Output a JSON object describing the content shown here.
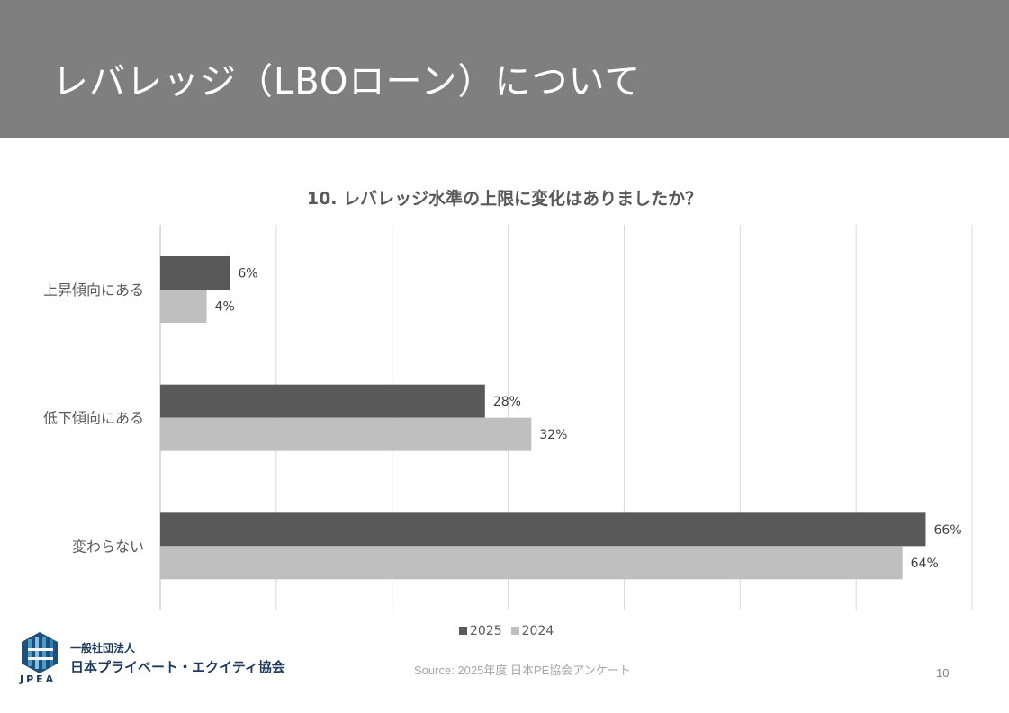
{
  "header": {
    "title": "レバレッジ（LBOローン）について"
  },
  "chart_data": {
    "type": "bar",
    "orientation": "horizontal",
    "title": "10. レバレッジ水準の上限に変化はありましたか？",
    "categories": [
      "上昇傾向にある",
      "低下傾向にある",
      "変わらない"
    ],
    "series": [
      {
        "name": "2025",
        "values": [
          6,
          28,
          66
        ],
        "labels": [
          "6%",
          "28%",
          "66%"
        ],
        "color": "#595959"
      },
      {
        "name": "2024",
        "values": [
          4,
          32,
          64
        ],
        "labels": [
          "4%",
          "32%",
          "64%"
        ],
        "color": "#bfbfbf"
      }
    ],
    "xlim": [
      0,
      70
    ],
    "grid": true,
    "legend": "bottom"
  },
  "footer": {
    "source": "Source: 2025年度 日本PE協会アンケート",
    "page_number": "10",
    "org_line1": "一般社団法人",
    "org_line2": "日本プライベート・エクイティ協会",
    "logo_text": "JPEA"
  }
}
